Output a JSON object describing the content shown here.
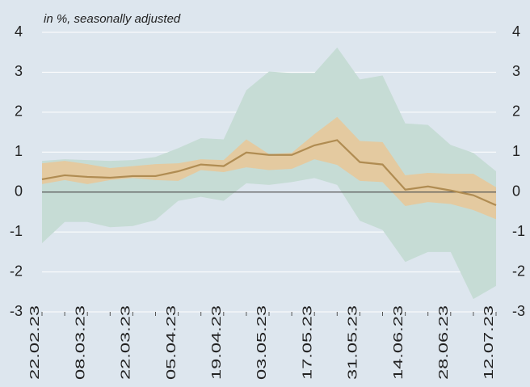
{
  "chart_data": {
    "type": "line",
    "subtitle": "in %, seasonally adjusted",
    "categories": [
      "22.02.23",
      null,
      "08.03.23",
      null,
      "22.03.23",
      null,
      "05.04.23",
      null,
      "19.04.23",
      null,
      "03.05.23",
      null,
      "17.05.23",
      null,
      "31.05.23",
      null,
      "14.06.23",
      null,
      "28.06.23",
      null,
      "12.07.23"
    ],
    "bands": [
      {
        "color": "#c6dcd5",
        "upper": [
          0.78,
          0.82,
          0.8,
          0.78,
          0.8,
          0.88,
          1.1,
          1.35,
          1.32,
          2.55,
          3.02,
          2.98,
          2.98,
          3.62,
          2.82,
          2.92,
          1.72,
          1.68,
          1.18,
          0.98,
          0.52
        ],
        "lower": [
          -1.28,
          -0.75,
          -0.75,
          -0.88,
          -0.85,
          -0.7,
          -0.22,
          -0.12,
          -0.22,
          0.22,
          0.18,
          0.25,
          0.35,
          0.18,
          -0.72,
          -0.95,
          -1.75,
          -1.5,
          -1.5,
          -2.68,
          -2.35
        ]
      },
      {
        "color": "#e4caa0",
        "upper": [
          0.72,
          0.78,
          0.7,
          0.6,
          0.65,
          0.7,
          0.72,
          0.82,
          0.8,
          1.32,
          0.95,
          0.98,
          1.45,
          1.88,
          1.28,
          1.25,
          0.42,
          0.48,
          0.46,
          0.46,
          0.12
        ],
        "lower": [
          0.2,
          0.3,
          0.2,
          0.3,
          0.35,
          0.3,
          0.28,
          0.55,
          0.5,
          0.62,
          0.55,
          0.58,
          0.82,
          0.68,
          0.28,
          0.25,
          -0.35,
          -0.25,
          -0.3,
          -0.45,
          -0.68
        ]
      }
    ],
    "series": [
      {
        "color": "#b08c52",
        "values": [
          0.32,
          0.42,
          0.38,
          0.36,
          0.4,
          0.4,
          0.52,
          0.69,
          0.65,
          0.99,
          0.93,
          0.93,
          1.17,
          1.3,
          0.75,
          0.69,
          0.06,
          0.14,
          0.04,
          -0.08,
          -0.33
        ]
      }
    ],
    "ylim": [
      -3,
      4
    ],
    "yticks": [
      -3,
      -2,
      -1,
      0,
      1,
      2,
      3,
      4
    ],
    "y2lim": [
      -3,
      4
    ],
    "y2ticks": [
      -3,
      -2,
      -1,
      0,
      1,
      2,
      3,
      4
    ],
    "grid": true
  }
}
